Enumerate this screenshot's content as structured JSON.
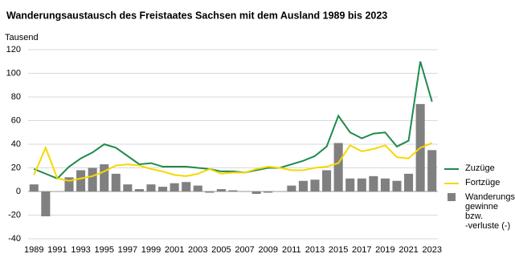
{
  "chart_data": {
    "type": "combo",
    "title": "Wanderungsaustausch des Freistaates Sachsen mit dem Ausland  1989 bis 2023",
    "y_label": "Tausend",
    "categories": [
      "1989",
      null,
      "1991",
      null,
      "1993",
      null,
      "1995",
      null,
      "1997",
      null,
      "1999",
      null,
      "2001",
      null,
      "2003",
      null,
      "2005",
      null,
      "2007",
      null,
      "2009",
      null,
      "2011",
      null,
      "2013",
      null,
      "2015",
      null,
      "2017",
      null,
      "2019",
      null,
      "2021",
      null,
      "2023"
    ],
    "series": [
      {
        "name": "Zuzüge",
        "type": "line",
        "color": "#1e8a4c",
        "values": [
          19,
          15,
          11,
          21,
          28,
          33,
          40,
          37,
          30,
          23,
          24,
          21,
          21,
          21,
          20,
          19,
          17,
          17,
          16,
          18,
          20,
          20,
          23,
          26,
          30,
          38,
          64,
          50,
          45,
          49,
          50,
          38,
          43,
          110,
          76
        ]
      },
      {
        "name": "Fortzüge",
        "type": "line",
        "color": "#f5d800",
        "values": [
          14,
          37,
          11,
          9,
          11,
          13,
          17,
          22,
          23,
          22,
          19,
          17,
          14,
          13,
          15,
          19,
          15,
          16,
          16,
          19,
          21,
          20,
          18,
          18,
          20,
          21,
          24,
          39,
          34,
          36,
          39,
          29,
          28,
          37,
          41
        ]
      },
      {
        "name": "Wanderungs-\ngewinne bzw.\n-verluste (-)",
        "type": "bar",
        "color": "#808080",
        "values": [
          6,
          -21,
          0,
          12,
          18,
          20,
          23,
          15,
          6,
          2,
          6,
          4,
          7,
          8,
          5,
          -1,
          2,
          1,
          0,
          -2,
          -1,
          0,
          5,
          9,
          10,
          18,
          41,
          11,
          11,
          13,
          11,
          9,
          15,
          74,
          35
        ]
      }
    ],
    "ylim": [
      -40,
      120
    ],
    "yticks": [
      -40,
      -20,
      0,
      20,
      40,
      60,
      80,
      100,
      120
    ],
    "grid": true
  }
}
